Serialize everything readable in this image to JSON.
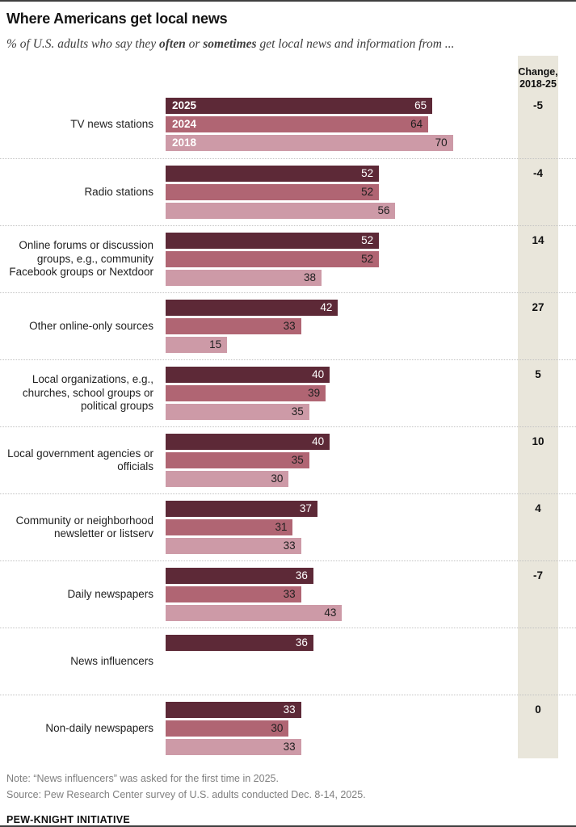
{
  "header": {
    "title": "Where Americans get local news",
    "subtitle": {
      "prefix": "% of U.S. adults who say they ",
      "bold1": "often",
      "mid": " or ",
      "bold2": "sometimes",
      "suffix": " get local news and information from ..."
    }
  },
  "change_column": {
    "header": "Change,\n2018-25"
  },
  "colors": {
    "2025": "#5d2937",
    "2024": "#b06573",
    "2018": "#cd9aa7",
    "change_bg": "#e9e6db"
  },
  "chart_data": {
    "type": "bar",
    "orientation": "horizontal",
    "value_unit": "percent",
    "xlim": [
      0,
      100
    ],
    "grid": false,
    "legend": "year labels shown inside first group bars",
    "categories": [
      "TV news stations",
      "Radio stations",
      "Online forums or discussion groups, e.g., community Facebook groups or Nextdoor",
      "Other online-only sources",
      "Local organizations, e.g., churches, school groups or political groups",
      "Local government agencies or officials",
      "Community or neighborhood newsletter or listserv",
      "Daily newspapers",
      "News influencers",
      "Non-daily newspapers"
    ],
    "series": [
      {
        "name": "2025",
        "values": [
          65,
          52,
          52,
          42,
          40,
          40,
          37,
          36,
          36,
          33
        ]
      },
      {
        "name": "2024",
        "values": [
          64,
          52,
          52,
          33,
          39,
          35,
          31,
          33,
          null,
          30
        ]
      },
      {
        "name": "2018",
        "values": [
          70,
          56,
          38,
          15,
          35,
          30,
          33,
          43,
          null,
          33
        ]
      }
    ],
    "change_2018_25": [
      "-5",
      "-4",
      "14",
      "27",
      "5",
      "10",
      "4",
      "-7",
      null,
      "0"
    ]
  },
  "footer": {
    "note": "Note: “News influencers” was asked for the first time in 2025.",
    "source": "Source: Pew Research Center survey of U.S. adults conducted Dec. 8-14, 2025.",
    "brand": "PEW-KNIGHT INITIATIVE"
  }
}
